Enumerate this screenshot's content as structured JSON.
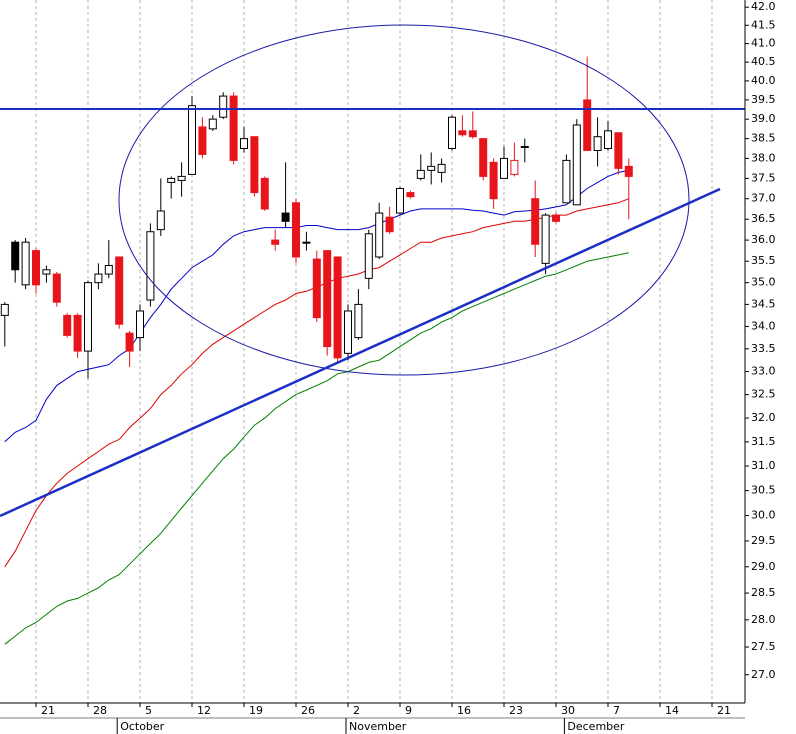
{
  "chart_data": {
    "type": "candlestick",
    "categories": [
      null,
      null,
      null,
      "21",
      null,
      null,
      null,
      null,
      "28",
      null,
      null,
      null,
      null,
      "5",
      null,
      null,
      null,
      null,
      "12",
      null,
      null,
      null,
      null,
      "19",
      null,
      null,
      null,
      null,
      "26",
      null,
      null,
      null,
      null,
      "2",
      null,
      null,
      null,
      null,
      "9",
      null,
      null,
      null,
      null,
      "16",
      null,
      null,
      null,
      null,
      "23",
      null,
      null,
      null,
      null,
      "30",
      null,
      null,
      null,
      null,
      "7",
      null,
      null,
      null,
      null,
      "14",
      null,
      null,
      null,
      null,
      "21",
      null,
      null,
      null
    ],
    "months": [
      null,
      null,
      null,
      null,
      null,
      null,
      null,
      null,
      null,
      null,
      null,
      "October",
      null,
      null,
      null,
      null,
      null,
      null,
      null,
      null,
      null,
      null,
      null,
      null,
      null,
      null,
      null,
      null,
      null,
      null,
      null,
      null,
      null,
      "November",
      null,
      null,
      null,
      null,
      null,
      null,
      null,
      null,
      null,
      null,
      null,
      null,
      null,
      null,
      null,
      null,
      null,
      null,
      null,
      null,
      "December",
      null,
      null,
      null,
      null,
      null,
      null,
      null,
      null,
      null,
      null,
      null,
      null,
      null,
      null,
      null,
      null,
      null
    ],
    "open": [
      34.25,
      35.95,
      34.95,
      35.75,
      35.2,
      35.2,
      34.25,
      34.25,
      33.45,
      35.0,
      35.2,
      35.6,
      33.85,
      33.75,
      34.6,
      36.25,
      37.4,
      37.45,
      37.6,
      38.8,
      38.75,
      39.05,
      39.6,
      38.25,
      38.55,
      37.5,
      36.0,
      36.65,
      36.9,
      35.95,
      35.55,
      35.75,
      35.6,
      33.4,
      33.75,
      35.1,
      35.6,
      36.55,
      36.65,
      37.15,
      37.5,
      37.7,
      37.65,
      38.25,
      38.7,
      38.7,
      38.5,
      37.9,
      37.5,
      37.6,
      38.3,
      37.0,
      35.45,
      36.6,
      36.9,
      36.85,
      39.5,
      38.2,
      38.25,
      38.65,
      37.8,
      null,
      null,
      null,
      null,
      null,
      null,
      null,
      null,
      null,
      null,
      null
    ],
    "high": [
      34.55,
      36.0,
      36.05,
      35.8,
      35.4,
      35.25,
      34.3,
      34.3,
      35.05,
      35.45,
      36.0,
      35.6,
      33.9,
      34.5,
      36.4,
      37.5,
      37.55,
      37.9,
      39.6,
      39.05,
      39.1,
      39.7,
      39.7,
      38.8,
      38.55,
      37.55,
      36.25,
      37.9,
      37.0,
      36.2,
      35.75,
      35.75,
      35.6,
      34.5,
      34.85,
      36.25,
      36.9,
      36.8,
      37.3,
      37.2,
      38.1,
      38.15,
      38.0,
      39.1,
      39.1,
      39.2,
      38.5,
      38.0,
      38.3,
      38.4,
      38.5,
      37.45,
      36.65,
      36.65,
      38.1,
      39.0,
      40.65,
      39.05,
      38.95,
      38.65,
      38.0,
      null,
      null,
      null,
      null,
      null,
      null,
      null,
      null,
      null,
      null,
      null
    ],
    "low": [
      33.55,
      35.0,
      34.85,
      34.75,
      35.0,
      34.45,
      33.75,
      33.3,
      32.85,
      34.85,
      35.1,
      33.95,
      33.1,
      33.45,
      34.45,
      36.1,
      37.0,
      37.05,
      37.6,
      38.0,
      38.7,
      39.0,
      37.85,
      38.15,
      37.05,
      36.7,
      35.75,
      36.3,
      35.45,
      35.75,
      34.1,
      33.35,
      33.2,
      33.25,
      33.7,
      34.85,
      35.55,
      36.15,
      36.6,
      37.0,
      37.45,
      37.35,
      37.4,
      38.2,
      38.55,
      38.5,
      37.45,
      36.75,
      37.5,
      37.55,
      37.9,
      35.6,
      35.2,
      36.4,
      36.9,
      36.85,
      38.2,
      37.8,
      38.2,
      37.6,
      36.5,
      null,
      null,
      null,
      null,
      null,
      null,
      null,
      null,
      null,
      null,
      null
    ],
    "close": [
      34.5,
      35.3,
      35.95,
      34.95,
      35.3,
      34.55,
      33.8,
      33.45,
      35.0,
      35.2,
      35.4,
      34.05,
      33.45,
      34.35,
      36.2,
      36.7,
      37.5,
      37.55,
      39.35,
      38.1,
      39.0,
      39.6,
      37.95,
      38.5,
      37.15,
      36.75,
      35.9,
      36.45,
      35.6,
      35.95,
      34.2,
      33.55,
      33.3,
      34.35,
      34.5,
      36.15,
      36.65,
      36.2,
      37.25,
      37.05,
      37.7,
      37.8,
      37.85,
      39.05,
      38.6,
      38.55,
      37.55,
      37.0,
      38.0,
      37.95,
      38.3,
      35.9,
      36.6,
      36.45,
      37.95,
      38.85,
      38.2,
      38.55,
      38.7,
      37.75,
      37.55,
      null,
      null,
      null,
      null,
      null,
      null,
      null,
      null,
      null,
      null,
      null
    ],
    "rise_color": "#000000",
    "fall_color": "#e8141b",
    "hollow_fill": "#ffffff",
    "lines": [
      {
        "color": "#0000cc",
        "values": [
          31.5,
          31.7,
          31.8,
          31.95,
          32.4,
          32.7,
          32.85,
          33.0,
          33.05,
          33.1,
          33.15,
          33.35,
          33.5,
          33.85,
          34.2,
          34.5,
          34.85,
          35.1,
          35.35,
          35.5,
          35.65,
          35.9,
          36.1,
          36.2,
          36.25,
          36.3,
          36.3,
          36.3,
          36.3,
          36.35,
          36.35,
          36.3,
          36.25,
          36.25,
          36.25,
          36.3,
          36.4,
          36.5,
          36.6,
          36.7,
          36.75,
          36.75,
          36.75,
          36.75,
          36.75,
          36.72,
          36.7,
          36.65,
          36.6,
          36.68,
          36.7,
          36.72,
          36.75,
          36.8,
          36.85,
          37.05,
          37.25,
          37.4,
          37.55,
          37.65,
          37.7,
          null,
          null,
          null,
          null,
          null,
          null,
          null,
          null,
          null,
          null,
          null
        ]
      },
      {
        "color": "#dd0000",
        "values": [
          29.0,
          29.3,
          29.7,
          30.1,
          30.4,
          30.65,
          30.85,
          31.0,
          31.15,
          31.3,
          31.45,
          31.55,
          31.8,
          32.0,
          32.2,
          32.5,
          32.7,
          32.95,
          33.15,
          33.4,
          33.6,
          33.75,
          33.9,
          34.05,
          34.2,
          34.35,
          34.5,
          34.6,
          34.75,
          34.8,
          34.9,
          35.0,
          35.1,
          35.15,
          35.2,
          35.3,
          35.35,
          35.5,
          35.65,
          35.8,
          35.95,
          35.95,
          36.05,
          36.1,
          36.15,
          36.2,
          36.3,
          36.35,
          36.4,
          36.45,
          36.45,
          36.5,
          36.55,
          36.6,
          36.6,
          36.7,
          36.75,
          36.8,
          36.85,
          36.9,
          37.0,
          null,
          null,
          null,
          null,
          null,
          null,
          null,
          null,
          null,
          null,
          null
        ]
      },
      {
        "color": "#008000",
        "values": [
          27.55,
          27.7,
          27.85,
          27.95,
          28.1,
          28.25,
          28.35,
          28.4,
          28.5,
          28.6,
          28.75,
          28.85,
          29.05,
          29.25,
          29.45,
          29.65,
          29.9,
          30.15,
          30.4,
          30.65,
          30.9,
          31.15,
          31.35,
          31.6,
          31.85,
          32.0,
          32.2,
          32.35,
          32.5,
          32.6,
          32.7,
          32.8,
          32.95,
          33.0,
          33.1,
          33.2,
          33.25,
          33.4,
          33.55,
          33.7,
          33.85,
          33.95,
          34.1,
          34.2,
          34.35,
          34.45,
          34.55,
          34.65,
          34.75,
          34.85,
          34.95,
          35.05,
          35.15,
          35.2,
          35.3,
          35.4,
          35.5,
          35.55,
          35.6,
          35.65,
          35.7,
          null,
          null,
          null,
          null,
          null,
          null,
          null,
          null,
          null,
          null,
          null
        ]
      }
    ],
    "yscale": "log",
    "ylim": [
      26.5,
      42.2
    ],
    "yticks": [
      {
        "value": 27,
        "label": "27.0"
      },
      27.5,
      {
        "value": 28,
        "label": "28.0"
      },
      28.5,
      {
        "value": 29,
        "label": "29.0"
      },
      29.5,
      {
        "value": 30,
        "label": "30.0"
      },
      30.5,
      {
        "value": 31,
        "label": "31.0"
      },
      31.5,
      {
        "value": 32,
        "label": "32.0"
      },
      32.5,
      {
        "value": 33,
        "label": "33.0"
      },
      33.5,
      {
        "value": 34,
        "label": "34.0"
      },
      34.5,
      {
        "value": 35,
        "label": "35.0"
      },
      35.5,
      {
        "value": 36,
        "label": "36.0"
      },
      36.5,
      {
        "value": 37,
        "label": "37.0"
      },
      37.5,
      {
        "value": 38,
        "label": "38.0"
      },
      38.5,
      {
        "value": 39,
        "label": "39.0"
      },
      39.5,
      {
        "value": 40,
        "label": "40.0"
      },
      40.5,
      {
        "value": 41,
        "label": "41.0"
      },
      41.5,
      {
        "value": 42,
        "label": "42.0"
      }
    ],
    "xgrid": true
  }
}
